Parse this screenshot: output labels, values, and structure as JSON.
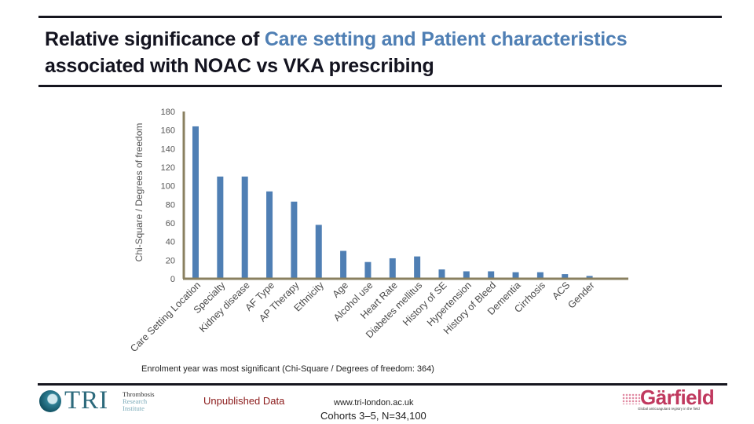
{
  "slide": {
    "title_part1": "Relative significance of ",
    "title_highlight": "Care setting and Patient characteristics",
    "title_part2": "associated with NOAC vs VKA prescribing",
    "footnote": "Enrolment year was most significant (Chi-Square / Degrees of freedom: 364)",
    "unpublished_label": "Unpublished Data",
    "website": "www.tri-london.ac.uk",
    "cohorts": "Cohorts 3–5, N=34,100",
    "colors": {
      "title": "#13131f",
      "highlight": "#4f7fb4",
      "bar": "#4f7fb4",
      "axis": "#8a8060",
      "unpublished": "#8b1a1a",
      "garfield": "#c0395f"
    }
  },
  "logos": {
    "tri": {
      "icon": "tri-swirl-icon",
      "name": "TRI",
      "sub": [
        "Thrombosis",
        "Research",
        "Institute"
      ]
    },
    "garfield": {
      "name": "Gärfield",
      "tagline": "Global anticoagulant registry in the field"
    }
  },
  "chart_data": {
    "type": "bar",
    "title": "",
    "xlabel": "",
    "ylabel": "Chi-Square / Degrees of freedom",
    "ylim": [
      0,
      180
    ],
    "yticks": [
      0,
      20,
      40,
      60,
      80,
      100,
      120,
      140,
      160,
      180
    ],
    "grid": false,
    "legend": "none",
    "categories": [
      "Care Setting Location",
      "Specialty",
      "Kidney disease",
      "AF Type",
      "AP Therapy",
      "Ethnicity",
      "Age",
      "Alcohol use",
      "Heart Rate",
      "Diabetes mellitus",
      "History of SE",
      "Hypertension",
      "History of Bleed",
      "Dementia",
      "Cirrhosis",
      "ACS",
      "Gender"
    ],
    "values": [
      164,
      110,
      110,
      94,
      83,
      58,
      30,
      18,
      22,
      24,
      10,
      8,
      8,
      7,
      7,
      5,
      3
    ]
  }
}
